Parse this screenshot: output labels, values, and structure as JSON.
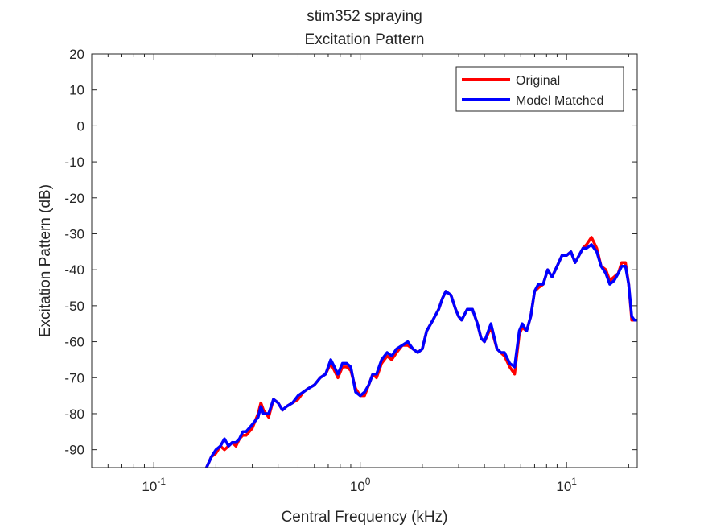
{
  "chart_data": {
    "type": "line",
    "title": "stim352 spraying",
    "subtitle": "Excitation Pattern",
    "xlabel": "Central Frequency (kHz)",
    "ylabel": "Excitation Pattern (dB)",
    "xscale": "log",
    "xlim": [
      0.05,
      22
    ],
    "ylim": [
      -95,
      20
    ],
    "xticks": [
      {
        "value": 0.1,
        "base": "10",
        "exp": "-1"
      },
      {
        "value": 1,
        "base": "10",
        "exp": "0"
      },
      {
        "value": 10,
        "base": "10",
        "exp": "1"
      }
    ],
    "yticks": [
      20,
      10,
      0,
      -10,
      -20,
      -30,
      -40,
      -50,
      -60,
      -70,
      -80,
      -90
    ],
    "grid": false,
    "legend_position": "top-right",
    "series": [
      {
        "name": "Original",
        "color": "#ff0000",
        "x": [
          0.18,
          0.19,
          0.2,
          0.21,
          0.22,
          0.23,
          0.24,
          0.25,
          0.26,
          0.27,
          0.28,
          0.3,
          0.32,
          0.33,
          0.34,
          0.36,
          0.38,
          0.4,
          0.42,
          0.44,
          0.47,
          0.5,
          0.53,
          0.56,
          0.6,
          0.64,
          0.68,
          0.72,
          0.75,
          0.78,
          0.82,
          0.86,
          0.9,
          0.95,
          1.0,
          1.05,
          1.1,
          1.15,
          1.2,
          1.27,
          1.35,
          1.42,
          1.5,
          1.6,
          1.7,
          1.8,
          1.9,
          2.0,
          2.1,
          2.25,
          2.4,
          2.5,
          2.6,
          2.75,
          2.9,
          3.0,
          3.1,
          3.3,
          3.5,
          3.7,
          3.85,
          4.0,
          4.3,
          4.6,
          4.8,
          5.0,
          5.3,
          5.6,
          5.9,
          6.1,
          6.4,
          6.7,
          7.0,
          7.3,
          7.7,
          8.1,
          8.5,
          9.0,
          9.5,
          10.0,
          10.5,
          11.0,
          11.5,
          12.0,
          12.5,
          13.2,
          14.0,
          14.7,
          15.5,
          16.2,
          17.0,
          17.8,
          18.5,
          19.3,
          20.0,
          20.7,
          21.3,
          22.0
        ],
        "y": [
          -95,
          -92,
          -91,
          -89,
          -90,
          -89,
          -88,
          -89,
          -87,
          -86,
          -86,
          -84,
          -80,
          -77,
          -79,
          -81,
          -76,
          -77,
          -79,
          -78,
          -77,
          -76,
          -74,
          -73,
          -72,
          -70,
          -69,
          -66,
          -68,
          -70,
          -67,
          -67,
          -68,
          -73,
          -75,
          -75,
          -72,
          -69,
          -70,
          -66,
          -64,
          -65,
          -63,
          -61,
          -61,
          -62,
          -63,
          -62,
          -57,
          -54,
          -51,
          -48,
          -46,
          -47,
          -51,
          -53,
          -54,
          -51,
          -51,
          -55,
          -59,
          -60,
          -56,
          -62,
          -63,
          -64,
          -67,
          -69,
          -58,
          -56,
          -57,
          -53,
          -46,
          -45,
          -44,
          -40,
          -42,
          -39,
          -36,
          -36,
          -35,
          -38,
          -36,
          -34,
          -33,
          -31,
          -34,
          -39,
          -40,
          -43,
          -42,
          -41,
          -38,
          -38,
          -44,
          -54,
          -54,
          -54
        ]
      },
      {
        "name": "Model Matched",
        "color": "#0000ff",
        "x": [
          0.18,
          0.19,
          0.2,
          0.21,
          0.22,
          0.23,
          0.24,
          0.25,
          0.26,
          0.27,
          0.28,
          0.3,
          0.32,
          0.33,
          0.34,
          0.36,
          0.38,
          0.4,
          0.42,
          0.44,
          0.47,
          0.5,
          0.53,
          0.56,
          0.6,
          0.64,
          0.68,
          0.72,
          0.75,
          0.78,
          0.82,
          0.86,
          0.9,
          0.95,
          1.0,
          1.05,
          1.1,
          1.15,
          1.2,
          1.27,
          1.35,
          1.42,
          1.5,
          1.6,
          1.7,
          1.8,
          1.9,
          2.0,
          2.1,
          2.25,
          2.4,
          2.5,
          2.6,
          2.75,
          2.9,
          3.0,
          3.1,
          3.3,
          3.5,
          3.7,
          3.85,
          4.0,
          4.3,
          4.6,
          4.8,
          5.0,
          5.3,
          5.6,
          5.9,
          6.1,
          6.4,
          6.7,
          7.0,
          7.3,
          7.7,
          8.1,
          8.5,
          9.0,
          9.5,
          10.0,
          10.5,
          11.0,
          11.5,
          12.0,
          12.5,
          13.2,
          14.0,
          14.7,
          15.5,
          16.2,
          17.0,
          17.8,
          18.5,
          19.3,
          20.0,
          20.7,
          21.3,
          22.0
        ],
        "y": [
          -95,
          -92,
          -90,
          -89,
          -87,
          -89,
          -88,
          -88,
          -87,
          -85,
          -85,
          -83,
          -81,
          -78,
          -80,
          -80,
          -76,
          -77,
          -79,
          -78,
          -77,
          -75,
          -74,
          -73,
          -72,
          -70,
          -69,
          -65,
          -67,
          -69,
          -66,
          -66,
          -67,
          -74,
          -75,
          -74,
          -72,
          -69,
          -69,
          -65,
          -63,
          -64,
          -62,
          -61,
          -60,
          -62,
          -63,
          -62,
          -57,
          -54,
          -51,
          -48,
          -46,
          -47,
          -51,
          -53,
          -54,
          -51,
          -51,
          -55,
          -59,
          -60,
          -55,
          -62,
          -63,
          -63,
          -66,
          -67,
          -57,
          -55,
          -57,
          -53,
          -46,
          -44,
          -44,
          -40,
          -42,
          -39,
          -36,
          -36,
          -35,
          -38,
          -36,
          -34,
          -34,
          -33,
          -35,
          -39,
          -41,
          -44,
          -43,
          -41,
          -39,
          -39,
          -44,
          -53,
          -54,
          -54
        ]
      }
    ]
  }
}
